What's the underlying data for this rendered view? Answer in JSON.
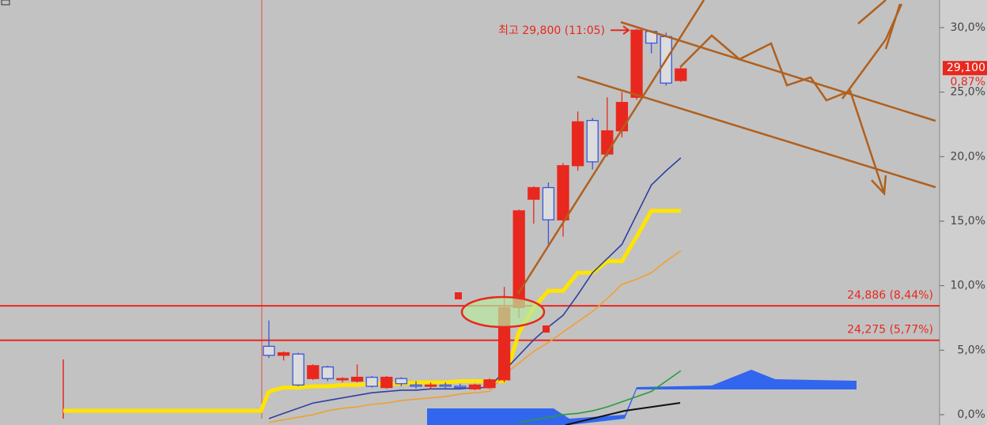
{
  "chart_data": {
    "type": "candlestick",
    "ylim": [
      -0.8,
      32.14
    ],
    "yticks": [
      {
        "value": 0,
        "label": "0,0%"
      },
      {
        "value": 5,
        "label": "5,0%"
      },
      {
        "value": 10,
        "label": "10,0%"
      },
      {
        "value": 15,
        "label": "15,0%"
      },
      {
        "value": 20,
        "label": "20,0%"
      },
      {
        "value": 25,
        "label": "25,0%"
      },
      {
        "value": 30,
        "label": "30,0%"
      }
    ],
    "up_color": "#e8281e",
    "down_color": "#3a56d8",
    "open": [
      5.3,
      4.6,
      4.7,
      2.8,
      3.7,
      2.7,
      2.6,
      2.9,
      2.1,
      2.8,
      2.3,
      2.2,
      2.3,
      2.2,
      2.0,
      2.1,
      2.7,
      8.3,
      16.7,
      17.6,
      15.1,
      19.3,
      22.8,
      20.2,
      22.0,
      24.6,
      29.7,
      29.3,
      25.9
    ],
    "high": [
      7.3,
      4.9,
      4.8,
      3.9,
      3.8,
      2.9,
      3.9,
      3.0,
      3.0,
      2.9,
      2.6,
      2.5,
      2.5,
      2.4,
      2.4,
      2.8,
      9.9,
      15.9,
      17.7,
      18.0,
      19.5,
      23.5,
      23.0,
      24.6,
      25.0,
      29.9,
      29.8,
      29.6,
      26.9
    ],
    "low": [
      4.4,
      4.2,
      2.2,
      2.7,
      2.6,
      2.5,
      2.5,
      2.1,
      2.0,
      2.2,
      2.0,
      2.0,
      2.0,
      2.0,
      1.9,
      2.0,
      2.5,
      7.5,
      14.8,
      13.2,
      13.8,
      18.9,
      19.0,
      20.0,
      21.5,
      24.4,
      28.0,
      25.5,
      25.8
    ],
    "close": [
      4.6,
      4.8,
      2.3,
      3.8,
      2.8,
      2.8,
      2.9,
      2.2,
      2.9,
      2.4,
      2.2,
      2.3,
      2.2,
      2.1,
      2.3,
      2.7,
      8.3,
      15.8,
      17.6,
      15.1,
      19.3,
      22.7,
      19.6,
      22.0,
      24.2,
      29.8,
      28.8,
      25.7,
      26.8
    ],
    "lines": [
      {
        "color": "#ffe400",
        "values": [
          1.8,
          2.1,
          2.1,
          2.2,
          2.2,
          2.3,
          2.3,
          2.4,
          2.4,
          2.4,
          2.5,
          2.5,
          2.5,
          2.6,
          2.6,
          2.6,
          2.6,
          6.4,
          8.3,
          9.6,
          9.6,
          11.0,
          11.0,
          11.9,
          11.9,
          13.8,
          15.8,
          15.8,
          15.8
        ]
      },
      {
        "color": "#f0a030",
        "values": [
          -0.6,
          -0.4,
          -0.2,
          0.0,
          0.3,
          0.5,
          0.6,
          0.8,
          0.9,
          1.1,
          1.2,
          1.3,
          1.4,
          1.6,
          1.7,
          1.8,
          3.1,
          4.0,
          4.9,
          5.6,
          6.4,
          7.2,
          8.0,
          9.0,
          10.1,
          10.5,
          11.0,
          11.9,
          12.7
        ]
      },
      {
        "color": "#3040a0",
        "values": [
          -0.3,
          0.1,
          0.5,
          0.9,
          1.1,
          1.3,
          1.5,
          1.7,
          1.8,
          1.9,
          1.9,
          2.0,
          2.0,
          2.0,
          2.1,
          2.1,
          3.4,
          4.6,
          5.8,
          6.8,
          7.7,
          9.3,
          11.0,
          12.1,
          13.2,
          15.5,
          17.8,
          18.9,
          19.9
        ]
      },
      {
        "color": "#2a9a40",
        "values": [
          null,
          null,
          null,
          null,
          null,
          null,
          null,
          null,
          null,
          null,
          null,
          null,
          null,
          null,
          null,
          null,
          null,
          -0.6,
          -0.4,
          -0.2,
          0.0,
          0.1,
          0.3,
          0.6,
          1.0,
          1.4,
          1.8,
          2.6,
          3.4
        ]
      }
    ],
    "hlines": [
      {
        "value": 8.44,
        "label": "24,886 (8,44%)"
      },
      {
        "value": 5.77,
        "label": "24,275 (5,77%)"
      }
    ],
    "peak": {
      "value": 29.8,
      "label": "최고 29,800 (11:05)"
    },
    "last_price": {
      "value": 26.8,
      "label": "29,100",
      "change": "0,87%"
    }
  }
}
